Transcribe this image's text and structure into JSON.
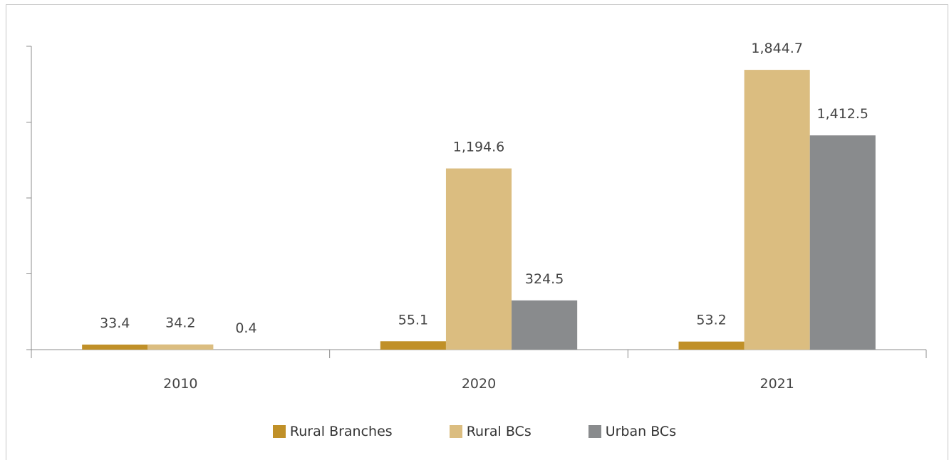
{
  "chart_data": {
    "type": "bar",
    "categories": [
      "2010",
      "2020",
      "2021"
    ],
    "series": [
      {
        "name": "Rural Branches",
        "color": "#c09028",
        "values": [
          33.4,
          55.1,
          53.2
        ],
        "labels": [
          "33.4",
          "55.1",
          "53.2"
        ]
      },
      {
        "name": "Rural BCs",
        "color": "#dbbd80",
        "values": [
          34.2,
          1194.6,
          1844.7
        ],
        "labels": [
          "34.2",
          "1,194.6",
          "1,844.7"
        ]
      },
      {
        "name": "Urban BCs",
        "color": "#898b8d",
        "values": [
          0.4,
          324.5,
          1412.5
        ],
        "labels": [
          "0.4",
          "324.5",
          "1,412.5"
        ]
      }
    ],
    "ylim": [
      0,
      2000
    ],
    "title": "",
    "xlabel": "",
    "ylabel": "",
    "legend_position": "bottom",
    "grid": false
  }
}
